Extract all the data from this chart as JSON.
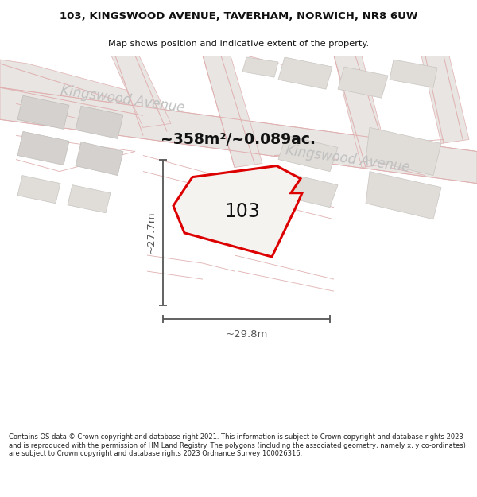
{
  "title_line1": "103, KINGSWOOD AVENUE, TAVERHAM, NORWICH, NR8 6UW",
  "title_line2": "Map shows position and indicative extent of the property.",
  "area_label": "~358m²/~0.089ac.",
  "plot_number": "103",
  "dim_vertical": "~27.7m",
  "dim_horizontal": "~29.8m",
  "road_label1": "Kingswood Avenue",
  "road_label2": "Kingswood Avenue",
  "footer_text": "Contains OS data © Crown copyright and database right 2021. This information is subject to Crown copyright and database rights 2023 and is reproduced with the permission of HM Land Registry. The polygons (including the associated geometry, namely x, y co-ordinates) are subject to Crown copyright and database rights 2023 Ordnance Survey 100026316.",
  "map_bg": "#f7f4f1",
  "road_band_color": "#e8e5e2",
  "block_gray": "#d4d1ce",
  "block_light": "#e0ddd9",
  "road_line_color": "#e0b0b0",
  "plot_edge_color": "#dd0000",
  "plot_fill": "#f5f3f0",
  "dim_line_color": "#555555",
  "text_road": "#b0b0b0",
  "text_dark": "#111111"
}
